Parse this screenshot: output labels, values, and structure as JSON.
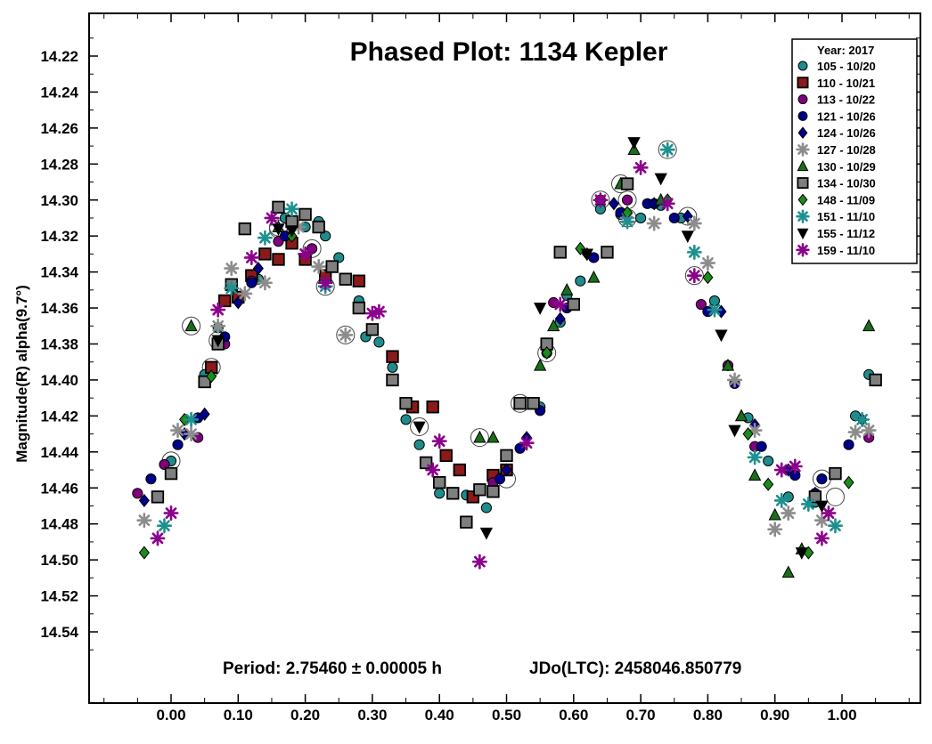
{
  "chart_data": {
    "type": "scatter",
    "title": "Phased Plot: 1134 Kepler",
    "ylabel": "Magnitude(R) alpha(9.7°)",
    "xlabel": "",
    "xlim": [
      -0.12,
      1.12
    ],
    "ylim": [
      14.2,
      14.56
    ],
    "y_inverted": true,
    "x_ticks": [
      0.0,
      0.1,
      0.2,
      0.3,
      0.4,
      0.5,
      0.6,
      0.7,
      0.8,
      0.9,
      1.0
    ],
    "x_tick_labels": [
      "0.00",
      "0.10",
      "0.20",
      "0.30",
      "0.40",
      "0.50",
      "0.60",
      "0.70",
      "0.80",
      "0.90",
      "1.00"
    ],
    "y_ticks": [
      14.22,
      14.24,
      14.26,
      14.28,
      14.3,
      14.32,
      14.34,
      14.36,
      14.38,
      14.4,
      14.42,
      14.44,
      14.46,
      14.48,
      14.5,
      14.52,
      14.54
    ],
    "y_tick_labels": [
      "14.22",
      "14.24",
      "14.26",
      "14.28",
      "14.30",
      "14.32",
      "14.34",
      "14.36",
      "14.38",
      "14.40",
      "14.42",
      "14.44",
      "14.46",
      "14.48",
      "14.50",
      "14.52",
      "14.54"
    ],
    "grid": false,
    "legend": {
      "placement": "top-right",
      "title": "Year: 2017",
      "entries": [
        "105 - 10/20",
        "110 - 10/21",
        "113 - 10/22",
        "121 - 10/26",
        "124 - 10/26",
        "127 - 10/28",
        "130 - 10/29",
        "134 - 10/30",
        "148 - 11/09",
        "151 - 11/10",
        "155 - 11/12",
        "159 - 11/10"
      ]
    },
    "footer": {
      "period": "Period: 2.75460 ± 0.00005 h",
      "epoch": "JDo(LTC): 2458046.850779"
    },
    "series": [
      {
        "name": "105 - 10/20",
        "marker": "circle",
        "color": "#1e8c8c",
        "points": [
          [
            0.0,
            14.445
          ],
          [
            0.05,
            14.397
          ],
          [
            0.07,
            14.371
          ],
          [
            0.13,
            14.344
          ],
          [
            0.17,
            14.31
          ],
          [
            0.2,
            14.315
          ],
          [
            0.22,
            14.312
          ],
          [
            0.23,
            14.32
          ],
          [
            0.25,
            14.332
          ],
          [
            0.28,
            14.356
          ],
          [
            0.29,
            14.376
          ],
          [
            0.31,
            14.379
          ],
          [
            0.33,
            14.393
          ],
          [
            0.35,
            14.422
          ],
          [
            0.37,
            14.436
          ],
          [
            0.4,
            14.463
          ],
          [
            0.44,
            14.464
          ],
          [
            0.47,
            14.471
          ],
          [
            0.55,
            14.415
          ],
          [
            0.56,
            14.385
          ],
          [
            0.58,
            14.368
          ],
          [
            0.59,
            14.353
          ],
          [
            0.61,
            14.345
          ],
          [
            0.64,
            14.305
          ],
          [
            0.67,
            14.308
          ],
          [
            0.7,
            14.31
          ],
          [
            0.73,
            14.303
          ],
          [
            0.76,
            14.31
          ],
          [
            0.81,
            14.356
          ],
          [
            0.83,
            14.392
          ],
          [
            0.86,
            14.421
          ],
          [
            0.89,
            14.445
          ],
          [
            0.92,
            14.465
          ],
          [
            0.96,
            14.468
          ],
          [
            1.02,
            14.42
          ],
          [
            1.04,
            14.397
          ]
        ]
      },
      {
        "name": "110 - 10/21",
        "marker": "square",
        "color": "#8b1a1a",
        "points": [
          [
            0.06,
            14.393
          ],
          [
            0.08,
            14.356
          ],
          [
            0.1,
            14.354
          ],
          [
            0.12,
            14.342
          ],
          [
            0.14,
            14.33
          ],
          [
            0.16,
            14.333
          ],
          [
            0.18,
            14.324
          ],
          [
            0.2,
            14.333
          ],
          [
            0.23,
            14.342
          ],
          [
            0.28,
            14.345
          ],
          [
            0.33,
            14.387
          ],
          [
            0.36,
            14.415
          ],
          [
            0.39,
            14.415
          ],
          [
            0.41,
            14.442
          ],
          [
            0.43,
            14.45
          ],
          [
            0.45,
            14.465
          ],
          [
            0.48,
            14.453
          ],
          [
            0.5,
            14.45
          ]
        ]
      },
      {
        "name": "113 - 10/22",
        "marker": "circle",
        "color": "#800080",
        "points": [
          [
            -0.05,
            14.463
          ],
          [
            -0.01,
            14.447
          ],
          [
            0.04,
            14.432
          ],
          [
            0.08,
            14.38
          ],
          [
            0.12,
            14.345
          ],
          [
            0.16,
            14.323
          ],
          [
            0.21,
            14.327
          ],
          [
            0.48,
            14.457
          ],
          [
            0.57,
            14.357
          ],
          [
            0.64,
            14.3
          ],
          [
            0.68,
            14.3
          ],
          [
            0.72,
            14.302
          ],
          [
            0.79,
            14.358
          ],
          [
            0.83,
            14.392
          ],
          [
            0.87,
            14.437
          ],
          [
            0.96,
            14.463
          ],
          [
            1.04,
            14.432
          ]
        ]
      },
      {
        "name": "121 - 10/26",
        "marker": "circle",
        "color": "#00008b",
        "points": [
          [
            -0.03,
            14.455
          ],
          [
            0.01,
            14.436
          ],
          [
            0.04,
            14.421
          ],
          [
            0.08,
            14.376
          ],
          [
            0.12,
            14.346
          ],
          [
            0.17,
            14.32
          ],
          [
            0.49,
            14.455
          ],
          [
            0.52,
            14.438
          ],
          [
            0.55,
            14.417
          ],
          [
            0.59,
            14.36
          ],
          [
            0.63,
            14.332
          ],
          [
            0.67,
            14.307
          ],
          [
            0.71,
            14.302
          ],
          [
            0.75,
            14.31
          ],
          [
            0.8,
            14.362
          ],
          [
            0.84,
            14.402
          ],
          [
            0.88,
            14.437
          ],
          [
            0.93,
            14.453
          ],
          [
            0.97,
            14.455
          ],
          [
            1.01,
            14.436
          ]
        ]
      },
      {
        "name": "124 - 10/26",
        "marker": "diamond",
        "color": "#00008b",
        "points": [
          [
            -0.04,
            14.467
          ],
          [
            0.02,
            14.43
          ],
          [
            0.05,
            14.419
          ],
          [
            0.1,
            14.357
          ],
          [
            0.13,
            14.338
          ],
          [
            0.5,
            14.45
          ],
          [
            0.53,
            14.432
          ],
          [
            0.58,
            14.366
          ],
          [
            0.62,
            14.33
          ],
          [
            0.66,
            14.302
          ],
          [
            0.72,
            14.302
          ],
          [
            0.77,
            14.309
          ],
          [
            0.82,
            14.362
          ],
          [
            0.87,
            14.425
          ],
          [
            0.92,
            14.45
          ],
          [
            0.96,
            14.463
          ],
          [
            1.03,
            14.422
          ]
        ]
      },
      {
        "name": "127 - 10/28",
        "marker": "asterisk",
        "color": "#8c8c8c",
        "points": [
          [
            -0.04,
            14.478
          ],
          [
            0.01,
            14.428
          ],
          [
            0.03,
            14.43
          ],
          [
            0.07,
            14.37
          ],
          [
            0.09,
            14.338
          ],
          [
            0.11,
            14.352
          ],
          [
            0.14,
            14.346
          ],
          [
            0.19,
            14.315
          ],
          [
            0.22,
            14.337
          ],
          [
            0.26,
            14.375
          ],
          [
            0.68,
            14.31
          ],
          [
            0.72,
            14.313
          ],
          [
            0.78,
            14.313
          ],
          [
            0.8,
            14.335
          ],
          [
            0.84,
            14.4
          ],
          [
            0.87,
            14.428
          ],
          [
            0.9,
            14.483
          ],
          [
            0.92,
            14.474
          ],
          [
            0.97,
            14.478
          ],
          [
            1.02,
            14.429
          ],
          [
            1.04,
            14.428
          ]
        ]
      },
      {
        "name": "130 - 10/29",
        "marker": "triangle",
        "color": "#1a6e1a",
        "points": [
          [
            0.03,
            14.37
          ],
          [
            0.16,
            14.315
          ],
          [
            0.46,
            14.432
          ],
          [
            0.48,
            14.432
          ],
          [
            0.55,
            14.392
          ],
          [
            0.57,
            14.37
          ],
          [
            0.59,
            14.35
          ],
          [
            0.63,
            14.343
          ],
          [
            0.67,
            14.291
          ],
          [
            0.69,
            14.272
          ],
          [
            0.73,
            14.3
          ],
          [
            0.83,
            14.392
          ],
          [
            0.85,
            14.42
          ],
          [
            0.87,
            14.453
          ],
          [
            0.9,
            14.475
          ],
          [
            0.92,
            14.507
          ],
          [
            0.94,
            14.494
          ],
          [
            1.04,
            14.37
          ]
        ]
      },
      {
        "name": "134 - 10/30",
        "marker": "square",
        "color": "#7f7f7f",
        "points": [
          [
            0.0,
            14.452
          ],
          [
            0.05,
            14.401
          ],
          [
            0.07,
            14.38
          ],
          [
            0.09,
            14.347
          ],
          [
            0.11,
            14.316
          ],
          [
            0.16,
            14.304
          ],
          [
            0.18,
            14.312
          ],
          [
            0.2,
            14.308
          ],
          [
            0.22,
            14.315
          ],
          [
            0.24,
            14.337
          ],
          [
            0.26,
            14.344
          ],
          [
            0.28,
            14.36
          ],
          [
            0.3,
            14.372
          ],
          [
            0.33,
            14.4
          ],
          [
            0.35,
            14.413
          ],
          [
            0.38,
            14.446
          ],
          [
            0.4,
            14.457
          ],
          [
            0.42,
            14.463
          ],
          [
            0.44,
            14.479
          ],
          [
            0.46,
            14.461
          ],
          [
            0.48,
            14.462
          ],
          [
            0.5,
            14.442
          ],
          [
            0.52,
            14.413
          ],
          [
            0.54,
            14.413
          ],
          [
            0.56,
            14.38
          ],
          [
            0.58,
            14.329
          ],
          [
            0.6,
            14.358
          ],
          [
            0.65,
            14.329
          ],
          [
            0.68,
            14.291
          ],
          [
            0.96,
            14.465
          ],
          [
            0.99,
            14.452
          ],
          [
            1.05,
            14.4
          ],
          [
            -0.02,
            14.465
          ]
        ]
      },
      {
        "name": "148 - 11/09",
        "marker": "diamond",
        "color": "#1a8c1a",
        "points": [
          [
            -0.04,
            14.496
          ],
          [
            0.02,
            14.422
          ],
          [
            0.06,
            14.398
          ],
          [
            0.18,
            14.32
          ],
          [
            0.56,
            14.385
          ],
          [
            0.61,
            14.327
          ],
          [
            0.68,
            14.307
          ],
          [
            0.74,
            14.3
          ],
          [
            0.8,
            14.343
          ],
          [
            0.86,
            14.43
          ],
          [
            0.89,
            14.458
          ],
          [
            0.95,
            14.496
          ],
          [
            1.01,
            14.457
          ]
        ]
      },
      {
        "name": "151 - 11/10",
        "marker": "asterisk",
        "color": "#1e9090",
        "points": [
          [
            -0.01,
            14.481
          ],
          [
            0.03,
            14.422
          ],
          [
            0.09,
            14.349
          ],
          [
            0.14,
            14.321
          ],
          [
            0.18,
            14.305
          ],
          [
            0.23,
            14.348
          ],
          [
            0.68,
            14.312
          ],
          [
            0.74,
            14.272
          ],
          [
            0.78,
            14.329
          ],
          [
            0.81,
            14.361
          ],
          [
            0.87,
            14.443
          ],
          [
            0.91,
            14.467
          ],
          [
            0.95,
            14.469
          ],
          [
            0.99,
            14.481
          ],
          [
            1.03,
            14.422
          ]
        ]
      },
      {
        "name": "155 - 11/12",
        "marker": "triangle-down",
        "color": "#000000",
        "points": [
          [
            0.07,
            14.378
          ],
          [
            0.16,
            14.316
          ],
          [
            0.18,
            14.317
          ],
          [
            0.37,
            14.426
          ],
          [
            0.47,
            14.485
          ],
          [
            0.55,
            14.36
          ],
          [
            0.62,
            14.33
          ],
          [
            0.69,
            14.268
          ],
          [
            0.73,
            14.288
          ],
          [
            0.77,
            14.32
          ],
          [
            0.82,
            14.375
          ],
          [
            0.84,
            14.428
          ],
          [
            0.94,
            14.496
          ],
          [
            0.97,
            14.47
          ]
        ]
      },
      {
        "name": "159 - 11/10",
        "marker": "asterisk",
        "color": "#8b008b",
        "points": [
          [
            -0.02,
            14.488
          ],
          [
            0.0,
            14.474
          ],
          [
            0.07,
            14.361
          ],
          [
            0.12,
            14.332
          ],
          [
            0.15,
            14.31
          ],
          [
            0.2,
            14.33
          ],
          [
            0.23,
            14.346
          ],
          [
            0.3,
            14.363
          ],
          [
            0.31,
            14.362
          ],
          [
            0.39,
            14.45
          ],
          [
            0.4,
            14.434
          ],
          [
            0.46,
            14.501
          ],
          [
            0.53,
            14.435
          ],
          [
            0.58,
            14.358
          ],
          [
            0.64,
            14.3
          ],
          [
            0.7,
            14.282
          ],
          [
            0.74,
            14.302
          ],
          [
            0.78,
            14.342
          ],
          [
            0.91,
            14.45
          ],
          [
            0.93,
            14.448
          ],
          [
            0.97,
            14.488
          ],
          [
            0.98,
            14.474
          ]
        ]
      }
    ],
    "highlighted_points": [
      [
        0.0,
        14.445
      ],
      [
        0.06,
        14.393
      ],
      [
        0.07,
        14.378
      ],
      [
        0.16,
        14.315
      ],
      [
        0.21,
        14.327
      ],
      [
        0.23,
        14.348
      ],
      [
        0.26,
        14.375
      ],
      [
        0.37,
        14.426
      ],
      [
        0.46,
        14.432
      ],
      [
        0.5,
        14.455
      ],
      [
        0.52,
        14.413
      ],
      [
        0.56,
        14.385
      ],
      [
        0.64,
        14.3
      ],
      [
        0.67,
        14.291
      ],
      [
        0.68,
        14.3
      ],
      [
        0.68,
        14.31
      ],
      [
        0.74,
        14.272
      ],
      [
        0.77,
        14.309
      ],
      [
        0.78,
        14.342
      ],
      [
        0.97,
        14.455
      ],
      [
        0.99,
        14.465
      ],
      [
        0.03,
        14.37
      ],
      [
        0.16,
        14.316
      ]
    ]
  }
}
